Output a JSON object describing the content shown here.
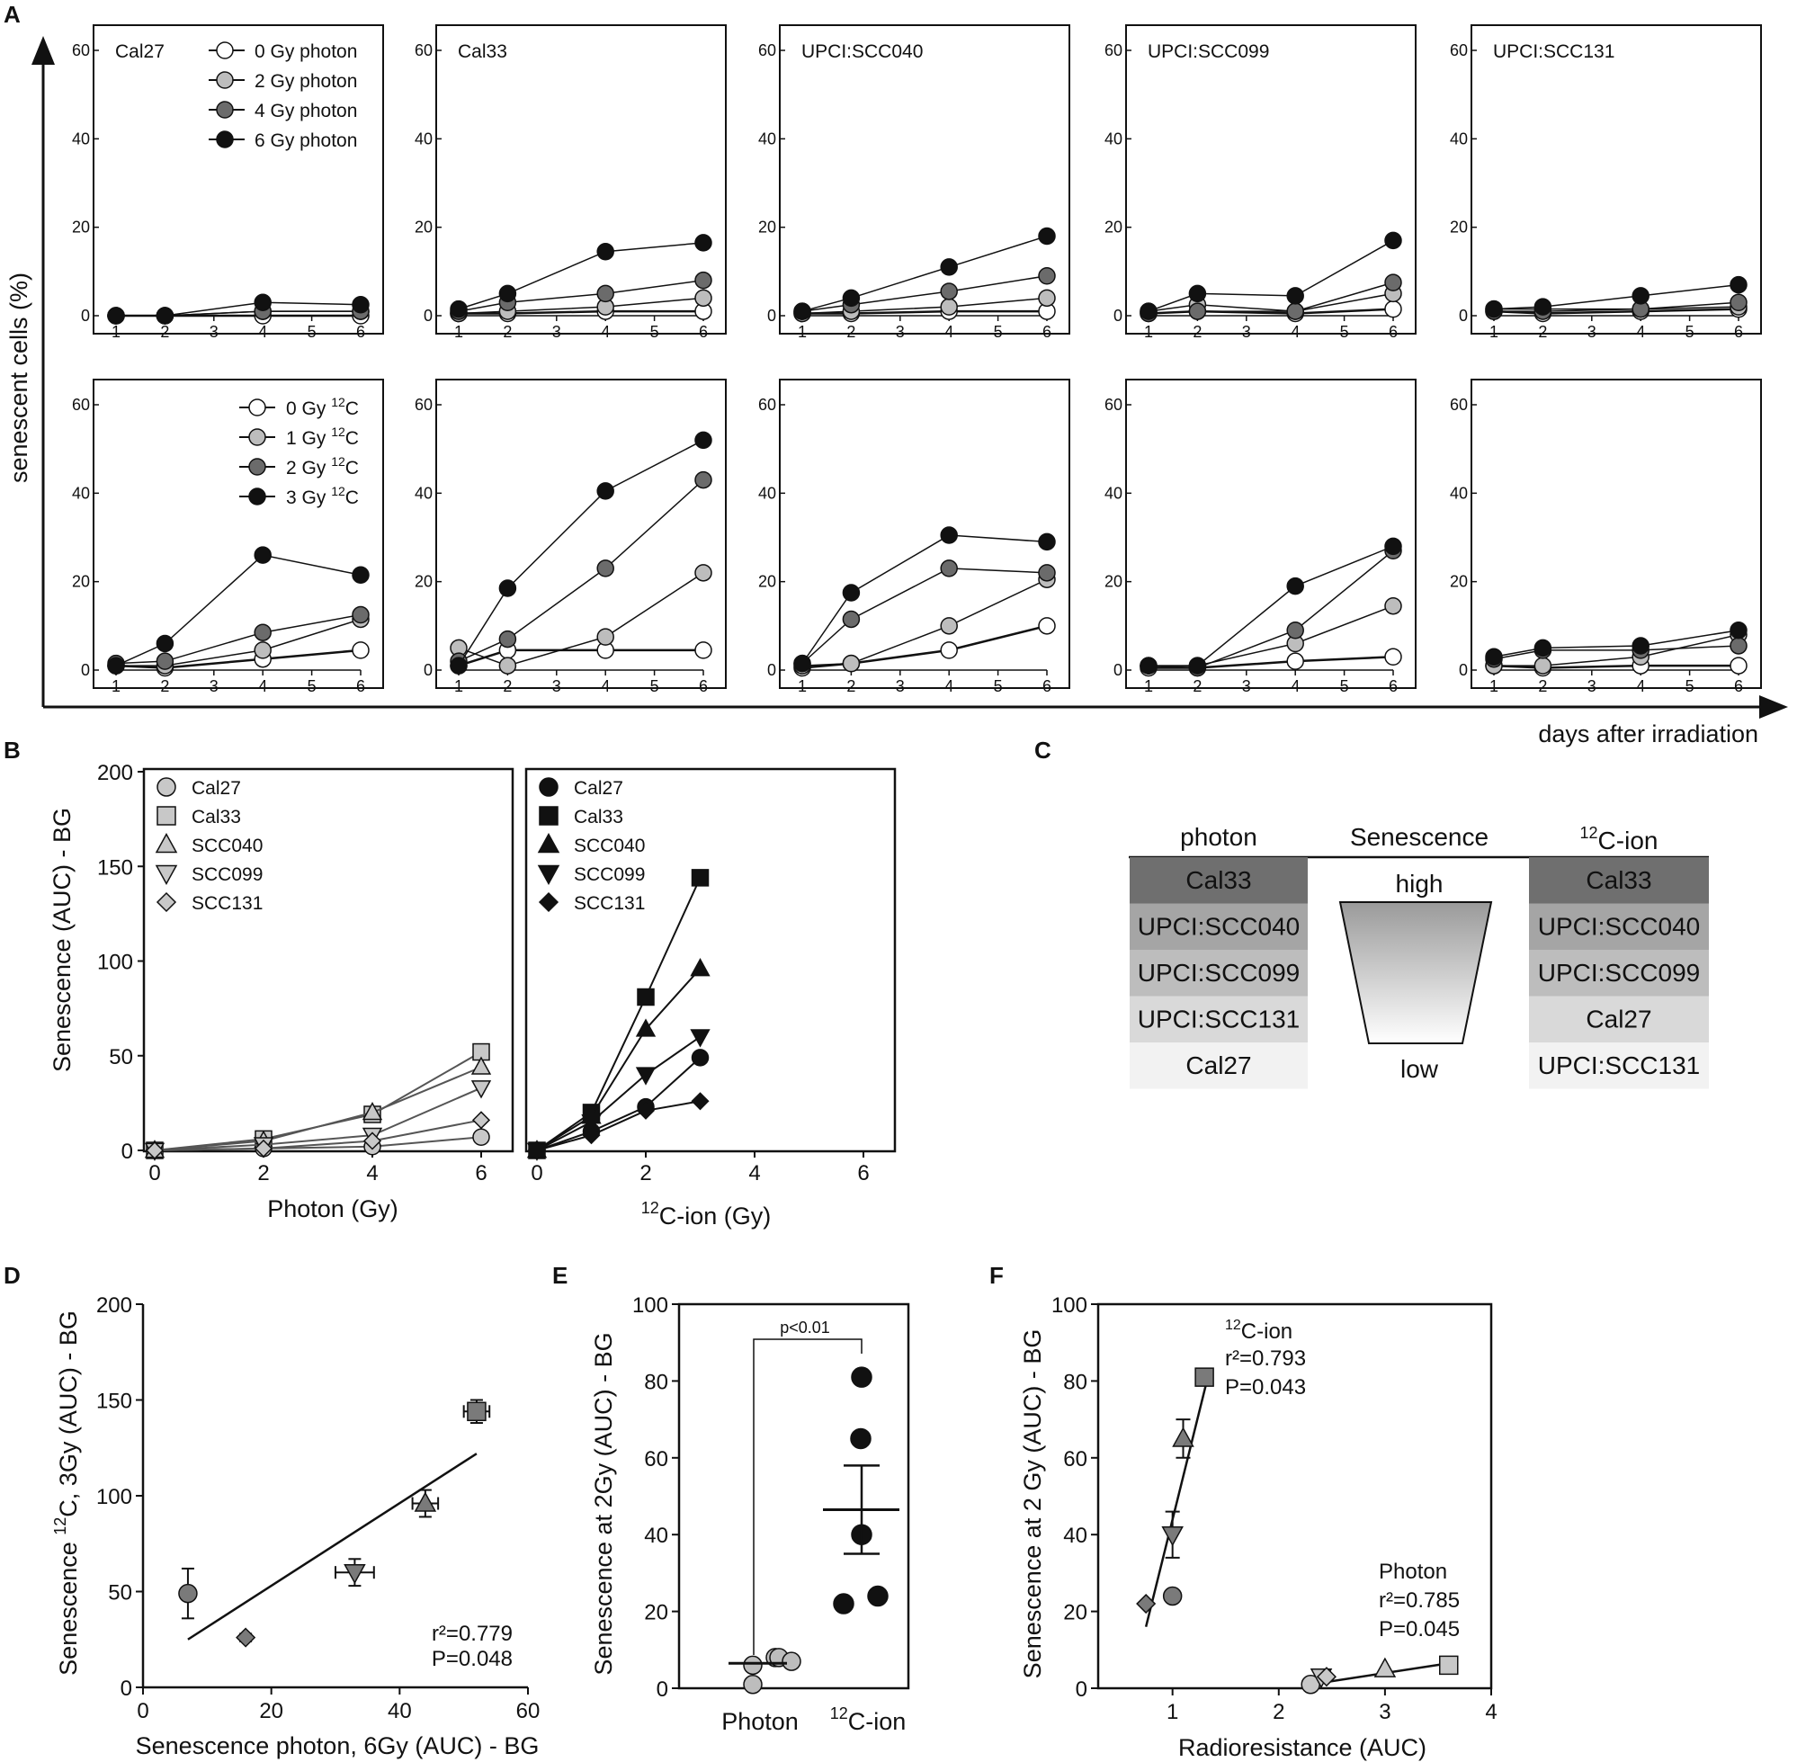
{
  "colors": {
    "white": "#ffffff",
    "light": "#bdbdbd",
    "mid": "#6b6b6b",
    "black": "#111111"
  },
  "panel_letters": {
    "a": "A",
    "b": "B",
    "c": "C",
    "d": "D",
    "e": "E",
    "f": "F"
  },
  "panelA": {
    "ylabel": "senescent cells (%)",
    "xlabel": "days after irradiation",
    "x_ticks": [
      1,
      2,
      3,
      4,
      5,
      6
    ],
    "y_ticks": [
      0,
      20,
      40,
      60
    ],
    "legend_photon": [
      {
        "label": "0 Gy photon",
        "fill": "white"
      },
      {
        "label": "2 Gy photon",
        "fill": "light"
      },
      {
        "label": "4 Gy photon",
        "fill": "mid"
      },
      {
        "label": "6 Gy photon",
        "fill": "black"
      }
    ],
    "legend_carbon": [
      {
        "dose": "0 Gy",
        "iso": "12",
        "elem": "C",
        "fill": "white"
      },
      {
        "dose": "1 Gy",
        "iso": "12",
        "elem": "C",
        "fill": "light"
      },
      {
        "dose": "2 Gy",
        "iso": "12",
        "elem": "C",
        "fill": "mid"
      },
      {
        "dose": "3 Gy",
        "iso": "12",
        "elem": "C",
        "fill": "black"
      }
    ],
    "cell_lines": [
      "Cal27",
      "Cal33",
      "UPCI:SCC040",
      "UPCI:SCC099",
      "UPCI:SCC131"
    ],
    "days": [
      1,
      2,
      4,
      6
    ],
    "photon": [
      {
        "0": [
          0,
          0,
          0,
          0
        ],
        "2": [
          0,
          0,
          1,
          1
        ],
        "4": [
          0,
          0,
          1,
          1
        ],
        "6": [
          0,
          0,
          3,
          2.5
        ]
      },
      {
        "0": [
          0.5,
          0.5,
          1,
          1
        ],
        "2": [
          0.5,
          1,
          2,
          4
        ],
        "4": [
          1,
          3,
          5,
          8
        ],
        "6": [
          1.5,
          5,
          14.5,
          16.5
        ]
      },
      {
        "0": [
          0.5,
          0.5,
          1,
          1
        ],
        "2": [
          0.5,
          1,
          2,
          4
        ],
        "4": [
          1,
          2.5,
          5.5,
          9
        ],
        "6": [
          1,
          4,
          11,
          18
        ]
      },
      {
        "0": [
          0.5,
          1,
          0.5,
          1.5
        ],
        "2": [
          1,
          2.5,
          1,
          5
        ],
        "4": [
          0.5,
          1,
          1,
          7.5
        ],
        "6": [
          1,
          5,
          4.5,
          17
        ]
      },
      {
        "0": [
          1,
          0.5,
          1,
          1.5
        ],
        "2": [
          1.5,
          1.5,
          1.5,
          2
        ],
        "4": [
          1,
          1,
          1.5,
          3
        ],
        "6": [
          1.5,
          2,
          4.5,
          7
        ]
      }
    ],
    "carbon": [
      {
        "0": [
          1,
          0.5,
          2.5,
          4.5
        ],
        "1": [
          1,
          1,
          4.5,
          11.5
        ],
        "2": [
          1.5,
          2,
          8.5,
          12.5
        ],
        "3": [
          1,
          6,
          26,
          21.5
        ]
      },
      {
        "0": [
          1,
          4.5,
          4.5,
          4.5
        ],
        "1": [
          5,
          1,
          7.5,
          22
        ],
        "2": [
          2,
          7,
          23,
          43
        ],
        "3": [
          1,
          18.5,
          40.5,
          52
        ]
      },
      {
        "0": [
          0.5,
          1.5,
          4.5,
          10
        ],
        "1": [
          1,
          1.5,
          10,
          20.5
        ],
        "2": [
          1.5,
          11.5,
          23,
          22
        ],
        "3": [
          1.5,
          17.5,
          30.5,
          29
        ]
      },
      {
        "0": [
          0.5,
          0.5,
          2,
          3
        ],
        "1": [
          1,
          1,
          6,
          14.5
        ],
        "2": [
          1,
          0.5,
          9,
          27
        ],
        "3": [
          1,
          1,
          19,
          28
        ]
      },
      {
        "0": [
          1,
          0.5,
          1,
          1
        ],
        "1": [
          1,
          1,
          3,
          8
        ],
        "2": [
          2.5,
          4.5,
          4.5,
          5.5
        ],
        "3": [
          3,
          5,
          5.5,
          9
        ]
      }
    ]
  },
  "panelB": {
    "ylabel": "Senescence (AUC) - BG",
    "photon_xlabel": "Photon (Gy)",
    "carbon_xlabel_sup": "12",
    "carbon_xlabel_rest": "C-ion (Gy)",
    "y_ticks": [
      0,
      50,
      100,
      150,
      200
    ],
    "x_ticks": [
      0,
      2,
      4,
      6
    ],
    "series": [
      {
        "name": "Cal27",
        "marker": "circle",
        "photon": [
          0,
          1,
          2,
          7
        ],
        "carbon": [
          0,
          10,
          23,
          49
        ]
      },
      {
        "name": "Cal33",
        "marker": "square",
        "photon": [
          0,
          6,
          19,
          52
        ],
        "carbon": [
          0,
          20,
          81,
          144
        ]
      },
      {
        "name": "SCC040",
        "marker": "triangle",
        "photon": [
          0,
          5,
          20,
          44
        ],
        "carbon": [
          0,
          18,
          64,
          96
        ]
      },
      {
        "name": "SCC099",
        "marker": "triangle-down",
        "photon": [
          0,
          3,
          8,
          33
        ],
        "carbon": [
          0,
          15,
          40,
          60
        ]
      },
      {
        "name": "SCC131",
        "marker": "diamond",
        "photon": [
          0,
          1,
          5,
          16
        ],
        "carbon": [
          0,
          8,
          21,
          26
        ]
      }
    ]
  },
  "panelC": {
    "header_photon": "photon",
    "header_sen": "Senescence",
    "header_carbon_sup": "12",
    "header_carbon_rest": "C-ion",
    "photon_rows": [
      "Cal33",
      "UPCI:SCC040",
      "UPCI:SCC099",
      "UPCI:SCC131",
      "Cal27"
    ],
    "carbon_rows": [
      "Cal33",
      "UPCI:SCC040",
      "UPCI:SCC099",
      "Cal27",
      "UPCI:SCC131"
    ],
    "high": "high",
    "low": "low"
  },
  "panelD": {
    "xlabel": "Senescence photon, 6Gy (AUC) - BG",
    "ylabel_a": "Senescence ",
    "ylabel_sup": "12",
    "ylabel_b": "C, 3Gy (AUC) - BG",
    "x_ticks": [
      0,
      20,
      40,
      60
    ],
    "y_ticks": [
      0,
      50,
      100,
      150,
      200
    ],
    "r2": "r²=0.779",
    "p": "P=0.048",
    "points": [
      {
        "name": "Cal27",
        "marker": "circle",
        "x": 7,
        "y": 49
      },
      {
        "name": "Cal33",
        "marker": "square",
        "x": 52,
        "y": 144
      },
      {
        "name": "SCC040",
        "marker": "triangle",
        "x": 44,
        "y": 96
      },
      {
        "name": "SCC099",
        "marker": "triangle-down",
        "x": 33,
        "y": 60
      },
      {
        "name": "SCC131",
        "marker": "diamond",
        "x": 16,
        "y": 26
      }
    ],
    "fit": [
      [
        7,
        25
      ],
      [
        52,
        122
      ]
    ]
  },
  "panelE": {
    "ylabel": "Senescence at 2Gy (AUC) - BG",
    "cat_photon": "Photon",
    "cat_carbon_sup": "12",
    "cat_carbon_rest": "C-ion",
    "y_ticks": [
      0,
      20,
      40,
      60,
      80,
      100
    ],
    "p_label": "p<0.01",
    "photon": [
      6,
      8,
      8,
      7,
      1
    ],
    "carbon": [
      81,
      65,
      40,
      22,
      24
    ],
    "photon_mean": 6.5,
    "carbon_mean": 46.5
  },
  "panelF": {
    "xlabel": "Radioresistance (AUC)",
    "ylabel": "Senescence at 2 Gy (AUC) - BG",
    "x_ticks": [
      1,
      2,
      3,
      4
    ],
    "y_ticks": [
      0,
      20,
      40,
      60,
      80,
      100
    ],
    "carbon_title_sup": "12",
    "carbon_title_rest": "C-ion",
    "carbon_r2": "r²=0.793",
    "carbon_p": "P=0.043",
    "photon_title": "Photon",
    "photon_r2": "r²=0.785",
    "photon_p": "P=0.045",
    "carbon_points": [
      {
        "marker": "circle",
        "x": 1.0,
        "y": 24
      },
      {
        "marker": "square",
        "x": 1.3,
        "y": 81
      },
      {
        "marker": "triangle",
        "x": 1.1,
        "y": 65
      },
      {
        "marker": "triangle-down",
        "x": 1.0,
        "y": 40
      },
      {
        "marker": "diamond",
        "x": 0.75,
        "y": 22
      }
    ],
    "photon_points": [
      {
        "marker": "circle",
        "x": 2.3,
        "y": 1
      },
      {
        "marker": "square",
        "x": 3.6,
        "y": 6
      },
      {
        "marker": "triangle",
        "x": 3.0,
        "y": 5
      },
      {
        "marker": "triangle-down",
        "x": 2.4,
        "y": 3
      },
      {
        "marker": "diamond",
        "x": 2.45,
        "y": 3
      }
    ]
  }
}
